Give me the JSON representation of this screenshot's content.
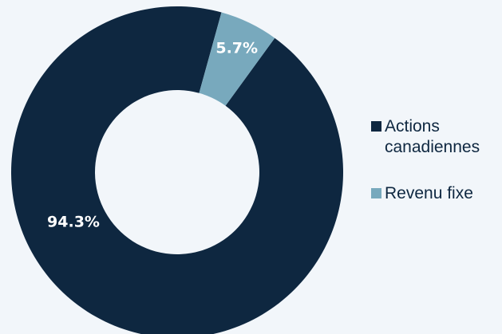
{
  "chart_data": {
    "type": "pie",
    "donut": true,
    "slices": [
      {
        "name": "Actions canadiennes",
        "value": 94.3,
        "label": "94.3%",
        "color": "#0e2740"
      },
      {
        "name": "Revenu fixe",
        "value": 5.7,
        "label": "5.7%",
        "color": "#78a9bd"
      }
    ],
    "legend_position": "right",
    "start_angle_deg": 54
  },
  "legend": {
    "items": [
      {
        "label": "Actions canadiennes",
        "color": "#0e2740"
      },
      {
        "label": "Revenu fixe",
        "color": "#78a9bd"
      }
    ]
  },
  "colors": {
    "background": "#f2f6fa",
    "label_text": "#ffffff"
  }
}
